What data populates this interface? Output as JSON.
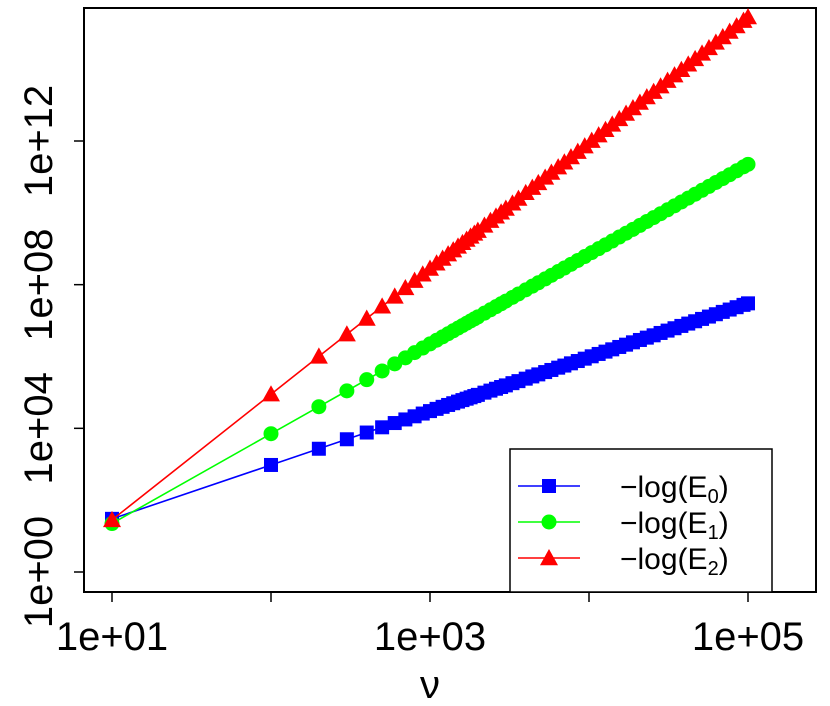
{
  "chart_data": {
    "type": "line",
    "title": "",
    "xlabel": "ν",
    "ylabel": "",
    "x_scale": "log10",
    "y_scale": "log10",
    "xlim_log10": [
      1,
      5
    ],
    "ylim_log10": [
      -0.3,
      15.8
    ],
    "x_ticks_log10": [
      1,
      2,
      3,
      4,
      5
    ],
    "x_tick_labels": [
      "1e+01",
      "",
      "1e+03",
      "",
      "1e+05"
    ],
    "y_ticks_log10": [
      0,
      4,
      8,
      12
    ],
    "y_tick_labels": [
      "1e+00",
      "1e+04",
      "1e+08",
      "1e+12"
    ],
    "grid": false,
    "legend_position": "bottom-right",
    "series": [
      {
        "name": "−log(E0)",
        "label_main": "−log(E",
        "label_sub": "0",
        "label_end": ")",
        "color": "#0000ff",
        "marker": "square",
        "exponent": 1.5,
        "intercept_log10": -0.02
      },
      {
        "name": "−log(E1)",
        "label_main": "−log(E",
        "label_sub": "1",
        "label_end": ")",
        "color": "#00ff00",
        "marker": "circle",
        "exponent": 2.5,
        "intercept_log10": -1.15
      },
      {
        "name": "−log(E2)",
        "label_main": "−log(E",
        "label_sub": "2",
        "label_end": ")",
        "color": "#ff0000",
        "marker": "triangle",
        "exponent": 3.5,
        "intercept_log10": -2.05
      }
    ],
    "x_values": [
      10,
      100,
      200,
      300,
      400,
      500,
      600,
      700,
      800,
      900,
      1000,
      1100,
      1200,
      1300,
      1400,
      1500,
      1600,
      1700,
      1800,
      1900,
      2000,
      2200,
      2400,
      2600,
      2800,
      3000,
      3300,
      3600,
      4000,
      4400,
      4800,
      5300,
      5800,
      6400,
      7000,
      7700,
      8500,
      9400,
      10400,
      11500,
      12700,
      14000,
      15500,
      17100,
      18900,
      20900,
      23100,
      25500,
      28200,
      31200,
      34500,
      38100,
      42100,
      46500,
      51400,
      56800,
      62800,
      69400,
      76700,
      84800,
      93700,
      100000
    ]
  }
}
